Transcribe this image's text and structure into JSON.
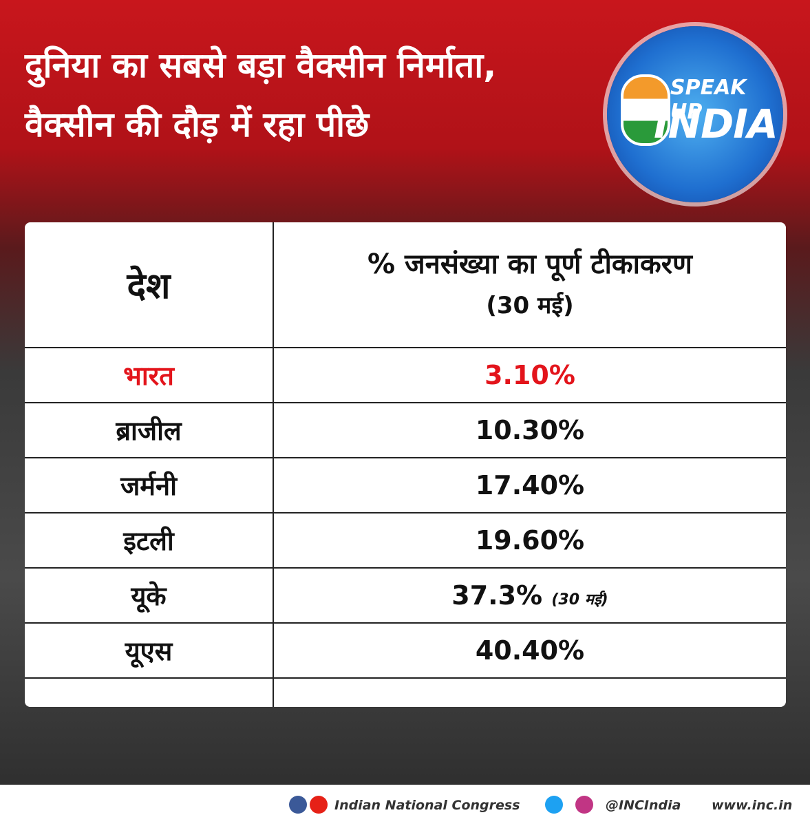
{
  "header": {
    "title_lines": [
      "दुनिया का सबसे बड़ा वैक्सीन निर्माता,",
      "वैक्सीन की दौड़ में रहा पीछे"
    ]
  },
  "logo": {
    "line1": "SPEAK UP",
    "line2": "INDIA"
  },
  "table": {
    "header": {
      "country": "देश",
      "metric": "% जनसंख्या का पूर्ण टीकाकरण",
      "note": "(30 मई)"
    },
    "rows": [
      [
        "भारत",
        "3.10%"
      ],
      [
        "ब्राजील",
        "10.30%"
      ],
      [
        "जर्मनी",
        "17.40%"
      ],
      [
        "इटली",
        "19.60%"
      ],
      [
        "यूके",
        "37.3%",
        "(30 मई)"
      ],
      [
        "यूएस",
        "40.40%"
      ]
    ]
  },
  "footer": {
    "org": "Indian National Congress",
    "handle": "@INCIndia",
    "site": "www.inc.in"
  }
}
